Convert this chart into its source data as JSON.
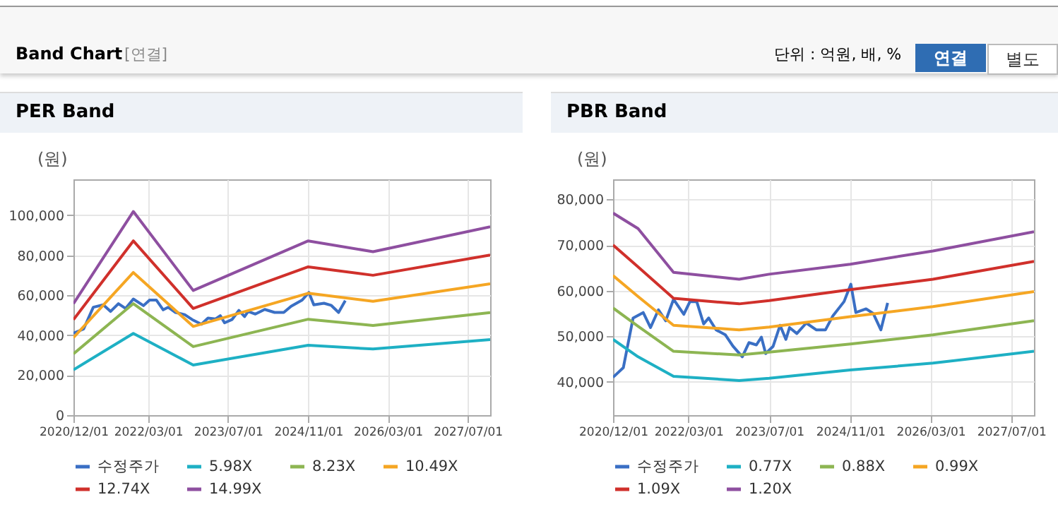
{
  "chart_data": [
    {
      "type": "line",
      "title": "PER Band",
      "ylabel": "(원)",
      "annotations": [
        "Band Chart",
        "[연결]",
        "단위 : 억원, 배, %",
        "연결",
        "별도"
      ],
      "xlim": [
        "2020-12-01",
        "2027-11-15"
      ],
      "xticks": [
        {
          "value": "2020-12-01",
          "label": "2020/12/01"
        },
        {
          "value": "2022-03-01",
          "label": "2022/03/01"
        },
        {
          "value": "2023-07-01",
          "label": "2023/07/01"
        },
        {
          "value": "2024-11-01",
          "label": "2024/11/01"
        },
        {
          "value": "2026-03-01",
          "label": "2026/03/01"
        },
        {
          "value": "2027-07-01",
          "label": "2027/07/01"
        }
      ],
      "ylim": [
        0,
        118000
      ],
      "yticks": [
        {
          "value": 0,
          "label": "0"
        },
        {
          "value": 20000,
          "label": "20,000"
        },
        {
          "value": 40000,
          "label": "40,000"
        },
        {
          "value": 60000,
          "label": "60,000"
        },
        {
          "value": 80000,
          "label": "80,000"
        },
        {
          "value": 100000,
          "label": "100,000"
        }
      ],
      "grid": true,
      "legend": "bottom",
      "series": [
        {
          "name": "수정주가",
          "color": "#3a6fc4",
          "x": [
            "2020-12-01",
            "2021-02-01",
            "2021-04-01",
            "2021-06-01",
            "2021-07-15",
            "2021-09-01",
            "2021-10-15",
            "2021-12-01",
            "2022-02-01",
            "2022-03-10",
            "2022-04-20",
            "2022-06-01",
            "2022-07-01",
            "2022-08-15",
            "2022-10-10",
            "2022-11-25",
            "2023-01-20",
            "2023-03-01",
            "2023-04-15",
            "2023-05-15",
            "2023-06-10",
            "2023-07-25",
            "2023-09-05",
            "2023-10-10",
            "2023-11-01",
            "2023-12-15",
            "2024-02-10",
            "2024-04-10",
            "2024-06-05",
            "2024-07-20",
            "2024-09-25",
            "2024-11-05",
            "2024-12-05",
            "2025-02-05",
            "2025-03-20",
            "2025-05-05",
            "2025-06-15"
          ],
          "values": [
            41000,
            43100,
            54000,
            55200,
            51900,
            55800,
            53400,
            58100,
            54800,
            57600,
            57600,
            52700,
            54000,
            51400,
            50300,
            47800,
            45500,
            48600,
            48100,
            49800,
            46200,
            47800,
            52400,
            49300,
            51900,
            50600,
            52900,
            51400,
            51400,
            54500,
            57600,
            61400,
            55200,
            56000,
            55000,
            51400,
            57300
          ]
        },
        {
          "name": "5.98X",
          "color": "#1eb0c4",
          "x": [
            "2020-12-01",
            "2021-12-01",
            "2022-12-01",
            "2024-11-01",
            "2025-12-01",
            "2027-11-15"
          ],
          "values": [
            22700,
            40900,
            25100,
            35000,
            33100,
            37800
          ]
        },
        {
          "name": "8.23X",
          "color": "#8db552",
          "x": [
            "2020-12-01",
            "2021-12-01",
            "2022-12-01",
            "2024-11-01",
            "2025-12-01",
            "2027-11-15"
          ],
          "values": [
            30700,
            55800,
            34300,
            48000,
            44900,
            51300
          ]
        },
        {
          "name": "10.49X",
          "color": "#f5a623",
          "x": [
            "2020-12-01",
            "2021-12-01",
            "2022-12-01",
            "2024-11-01",
            "2025-12-01",
            "2027-11-15"
          ],
          "values": [
            38800,
            71400,
            44400,
            61000,
            57000,
            65700
          ]
        },
        {
          "name": "12.74X",
          "color": "#d0302b",
          "x": [
            "2020-12-01",
            "2021-12-01",
            "2022-12-01",
            "2024-11-01",
            "2025-12-01",
            "2027-11-15"
          ],
          "values": [
            47800,
            87200,
            53400,
            74200,
            70000,
            80100
          ]
        },
        {
          "name": "14.99X",
          "color": "#8e4fa0",
          "x": [
            "2020-12-01",
            "2021-12-01",
            "2022-12-01",
            "2024-11-01",
            "2025-12-01",
            "2027-11-15"
          ],
          "values": [
            55800,
            101900,
            62400,
            87200,
            81800,
            94300
          ]
        }
      ]
    },
    {
      "type": "line",
      "title": "PBR Band",
      "ylabel": "(원)",
      "xlim": [
        "2020-12-01",
        "2027-11-15"
      ],
      "xticks": [
        {
          "value": "2020-12-01",
          "label": "2020/12/01"
        },
        {
          "value": "2022-03-01",
          "label": "2022/03/01"
        },
        {
          "value": "2023-07-01",
          "label": "2023/07/01"
        },
        {
          "value": "2024-11-01",
          "label": "2024/11/01"
        },
        {
          "value": "2026-03-01",
          "label": "2026/03/01"
        },
        {
          "value": "2027-07-01",
          "label": "2027/07/01"
        }
      ],
      "ylim": [
        32700,
        84400
      ],
      "yticks": [
        {
          "value": 40000,
          "label": "40,000"
        },
        {
          "value": 50000,
          "label": "50,000"
        },
        {
          "value": 60000,
          "label": "60,000"
        },
        {
          "value": 70000,
          "label": "70,000"
        },
        {
          "value": 80000,
          "label": "80,000"
        }
      ],
      "grid": true,
      "legend": "bottom",
      "series": [
        {
          "name": "수정주가",
          "color": "#3a6fc4",
          "x": [
            "2020-12-01",
            "2021-02-01",
            "2021-04-01",
            "2021-06-01",
            "2021-07-15",
            "2021-09-01",
            "2021-10-15",
            "2021-12-01",
            "2022-02-01",
            "2022-03-10",
            "2022-04-20",
            "2022-06-01",
            "2022-07-01",
            "2022-08-15",
            "2022-10-10",
            "2022-11-25",
            "2023-01-20",
            "2023-03-01",
            "2023-04-15",
            "2023-05-15",
            "2023-06-10",
            "2023-07-25",
            "2023-09-05",
            "2023-10-10",
            "2023-11-01",
            "2023-12-15",
            "2024-02-10",
            "2024-04-10",
            "2024-06-05",
            "2024-07-20",
            "2024-09-25",
            "2024-11-05",
            "2024-12-05",
            "2025-02-05",
            "2025-03-20",
            "2025-05-05",
            "2025-06-15"
          ],
          "values": [
            41000,
            43100,
            54000,
            55200,
            51900,
            55800,
            53400,
            58100,
            54800,
            57600,
            57600,
            52700,
            54000,
            51400,
            50300,
            47800,
            45500,
            48600,
            48100,
            49800,
            46200,
            47800,
            52400,
            49300,
            51900,
            50600,
            52900,
            51400,
            51400,
            54500,
            57600,
            61400,
            55200,
            56000,
            55000,
            51400,
            57300
          ]
        },
        {
          "name": "0.77X",
          "color": "#1eb0c4",
          "x": [
            "2020-12-01",
            "2021-05-01",
            "2021-12-01",
            "2023-01-01",
            "2023-07-01",
            "2024-11-01",
            "2026-03-15",
            "2027-11-15"
          ],
          "values": [
            49300,
            45500,
            41200,
            40300,
            40800,
            42600,
            44100,
            46700
          ]
        },
        {
          "name": "0.88X",
          "color": "#8db552",
          "x": [
            "2020-12-01",
            "2021-05-01",
            "2021-12-01",
            "2023-01-01",
            "2023-07-01",
            "2024-11-01",
            "2026-03-15",
            "2027-11-15"
          ],
          "values": [
            56200,
            52200,
            46700,
            45900,
            46500,
            48300,
            50300,
            53400
          ]
        },
        {
          "name": "0.99X",
          "color": "#f5a623",
          "x": [
            "2020-12-01",
            "2021-05-01",
            "2021-12-01",
            "2023-01-01",
            "2023-07-01",
            "2024-11-01",
            "2026-03-15",
            "2027-11-15"
          ],
          "values": [
            63300,
            58700,
            52400,
            51400,
            52000,
            54300,
            56500,
            59800
          ]
        },
        {
          "name": "1.09X",
          "color": "#d0302b",
          "x": [
            "2020-12-01",
            "2021-05-01",
            "2021-12-01",
            "2023-01-01",
            "2023-07-01",
            "2024-11-01",
            "2026-03-15",
            "2027-11-15"
          ],
          "values": [
            70000,
            65200,
            58300,
            57100,
            57800,
            60200,
            62500,
            66400
          ]
        },
        {
          "name": "1.20X",
          "color": "#8e4fa0",
          "x": [
            "2020-12-01",
            "2021-05-01",
            "2021-12-01",
            "2023-01-01",
            "2023-07-01",
            "2024-11-01",
            "2026-03-15",
            "2027-11-15"
          ],
          "values": [
            77000,
            73600,
            64000,
            62500,
            63600,
            65800,
            68700,
            72900
          ]
        }
      ]
    }
  ]
}
